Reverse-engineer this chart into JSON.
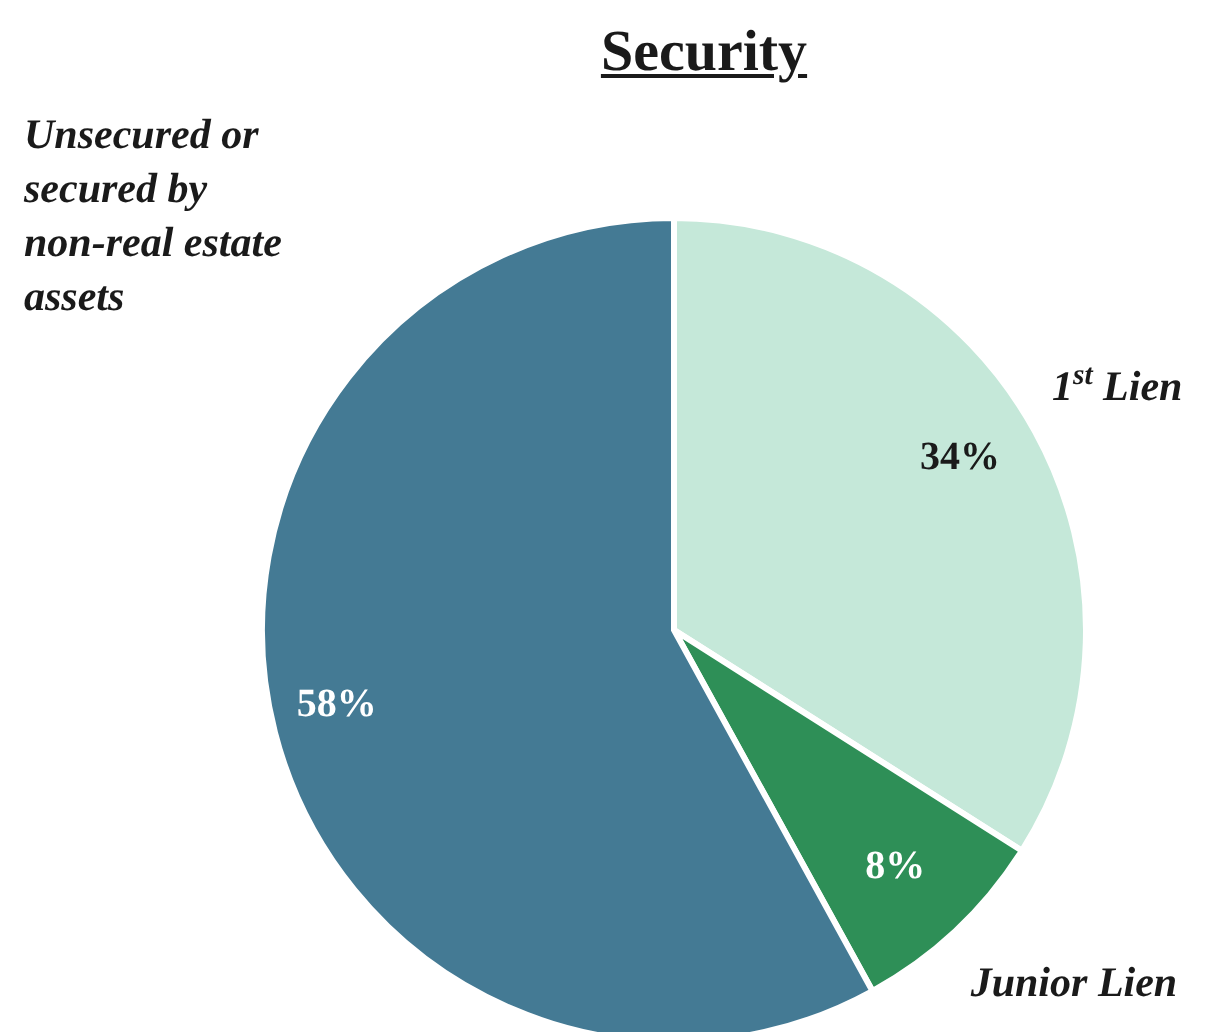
{
  "chart_data": {
    "type": "pie",
    "title": "Security",
    "categories": [
      "1$^{st}$ Lien",
      "Junior Lien",
      "Unsecured or secured by non-real estate assets"
    ],
    "values": [
      34,
      8,
      58
    ],
    "colors": [
      "#c5e8d9",
      "#2e8f57",
      "#447a94"
    ],
    "value_labels": [
      "34%",
      "8%",
      "58%"
    ]
  }
}
